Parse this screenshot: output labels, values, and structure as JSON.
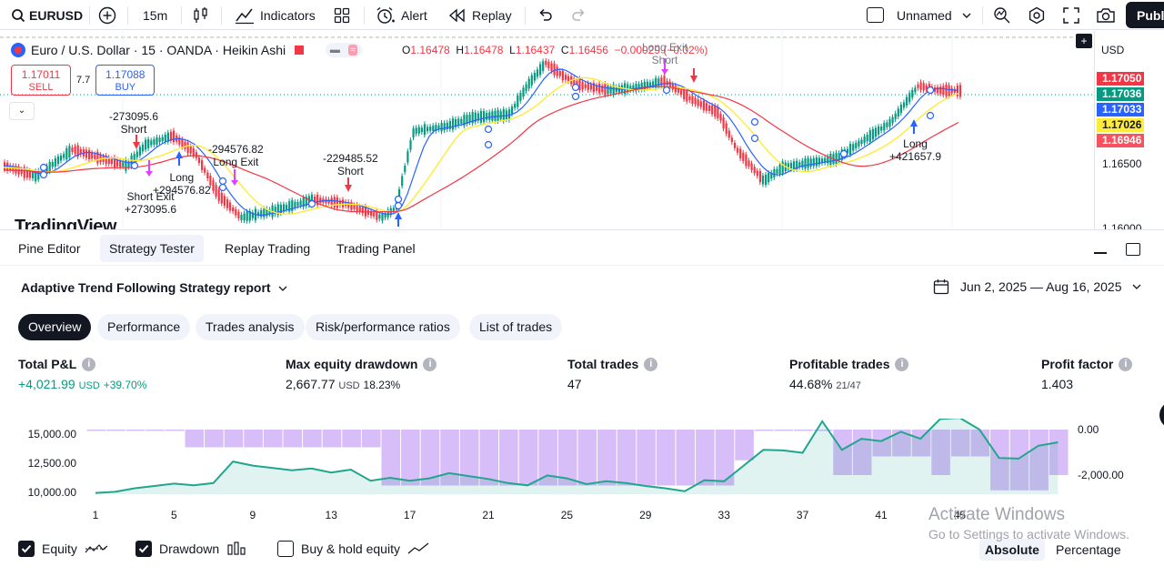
{
  "toolbar": {
    "symbol": "EURUSD",
    "interval": "15m",
    "indicators": "Indicators",
    "alert": "Alert",
    "replay": "Replay",
    "layout_name": "Unnamed",
    "publish": "Publ"
  },
  "chart": {
    "title": "Euro / U.S. Dollar · 15 · OANDA · Heikin Ashi",
    "ohlc": {
      "o_label": "O",
      "o": "1.16478",
      "h_label": "H",
      "h": "1.16478",
      "l_label": "L",
      "l": "1.16437",
      "c_label": "C",
      "c": "1.16456",
      "chg": "−0.00029 (−0.02%)"
    },
    "sell_price": "1.17011",
    "sell_label": "SELL",
    "spread": "7.7",
    "buy_price": "1.17088",
    "buy_label": "BUY",
    "currency": "USD",
    "price_badges": [
      {
        "value": "1.17050",
        "color": "#f23645"
      },
      {
        "value": "1.17036",
        "color": "#089981"
      },
      {
        "value": "1.17033",
        "color": "#2962ff"
      },
      {
        "value": "1.17026",
        "color": "#ffeb3b"
      },
      {
        "value": "1.16946",
        "color": "#f7525f"
      }
    ],
    "price_labels": [
      "1.16500",
      "1.16000"
    ],
    "logo": "TradingView",
    "trade_labels": [
      {
        "text": "-273095.6\nShort"
      },
      {
        "text": "Short Exit\n+273095.6"
      },
      {
        "text": "Long\n+294576.82"
      },
      {
        "text": "-294576.82\nLong Exit"
      },
      {
        "text": "-229485.52\nShort"
      },
      {
        "text": "Long Exit\nShort"
      },
      {
        "text": "Long\n+421657.9"
      }
    ]
  },
  "panel": {
    "tabs": [
      "Pine Editor",
      "Strategy Tester",
      "Replay Trading",
      "Trading Panel"
    ],
    "active_tab": 1,
    "report_title": "Adaptive Trend Following Strategy report",
    "date_range": "Jun 2, 2025 — Aug 16, 2025",
    "pills": [
      "Overview",
      "Performance",
      "Trades analysis",
      "Risk/performance ratios",
      "List of trades"
    ],
    "metrics": [
      {
        "title": "Total P&L",
        "value": "+4,021.99",
        "unit": "USD",
        "extra": "+39.70%"
      },
      {
        "title": "Max equity drawdown",
        "value": "2,667.77",
        "unit": "USD",
        "extra": "18.23%"
      },
      {
        "title": "Total trades",
        "value": "47",
        "unit": "",
        "extra": ""
      },
      {
        "title": "Profitable trades",
        "value": "44.68%",
        "unit": "21/47",
        "extra": ""
      },
      {
        "title": "Profit factor",
        "value": "1.403",
        "unit": "",
        "extra": ""
      }
    ],
    "equity_y_labels": [
      "15,000.00",
      "12,500.00",
      "10,000.00"
    ],
    "drawdown_y_labels": [
      "0.00",
      "-2,000.00"
    ],
    "x_labels": [
      "1",
      "5",
      "9",
      "13",
      "17",
      "21",
      "25",
      "29",
      "33",
      "37",
      "41",
      "45"
    ],
    "equity_values": [
      9950,
      10050,
      10350,
      10550,
      10750,
      10600,
      10800,
      12650,
      12300,
      12100,
      11900,
      12050,
      11700,
      11950,
      11000,
      11250,
      11000,
      11200,
      11650,
      11400,
      11150,
      10800,
      10600,
      11450,
      11200,
      10700,
      10950,
      10800,
      10550,
      10350,
      10100,
      11050,
      10950,
      12300,
      13650,
      13600,
      13400,
      16100,
      13650,
      14600,
      14400,
      15200,
      14600,
      16300,
      16400,
      15400,
      12950,
      12900,
      14000,
      14300
    ],
    "drawdown_values": [
      -20,
      -20,
      -20,
      -20,
      -20,
      -780,
      -780,
      -780,
      -780,
      -780,
      -780,
      -780,
      -780,
      -780,
      -780,
      -2460,
      -2460,
      -2460,
      -2460,
      -2460,
      -2460,
      -2460,
      -2460,
      -2460,
      -2460,
      -2460,
      -2460,
      -2460,
      -2460,
      -2460,
      -2460,
      -2460,
      -2460,
      -1350,
      -20,
      -20,
      -20,
      -20,
      -2000,
      -2000,
      -1180,
      -1180,
      -1180,
      -2000,
      -1180,
      -1180,
      -2670,
      -2670,
      -2670,
      -2000
    ],
    "controls": {
      "equity": "Equity",
      "drawdown": "Drawdown",
      "buy_hold": "Buy & hold equity",
      "absolute": "Absolute",
      "percentage": "Percentage"
    }
  },
  "watermark": {
    "line1": "Activate Windows",
    "line2": "Go to Settings to activate Windows."
  }
}
